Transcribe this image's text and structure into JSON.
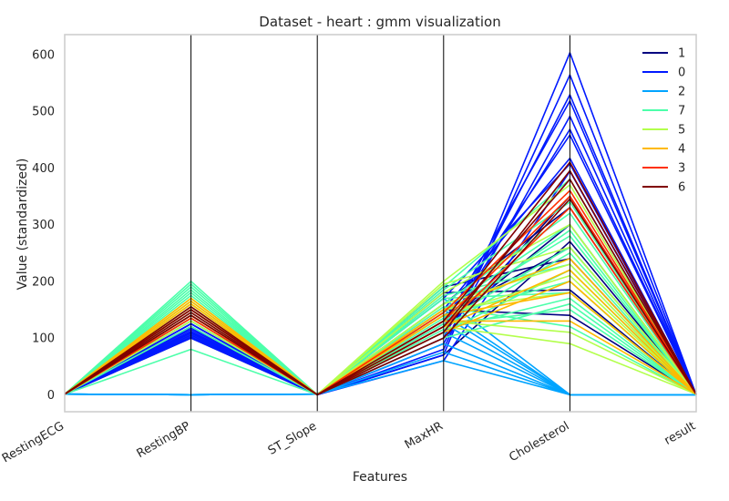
{
  "chart_data": {
    "type": "line",
    "title": "Dataset - heart : gmm visualization",
    "xlabel": "Features",
    "ylabel": "Value (standardized)",
    "categories": [
      "RestingECG",
      "RestingBP",
      "ST_Slope",
      "MaxHR",
      "Cholesterol",
      "result"
    ],
    "ylim": [
      -30,
      635
    ],
    "yticks": [
      0,
      100,
      200,
      300,
      400,
      500,
      600
    ],
    "grid": false,
    "legend_position": "top-right",
    "series": [
      {
        "name": "1",
        "color": "#000080",
        "lines": [
          [
            1,
            100,
            0,
            70,
            270,
            1
          ],
          [
            1,
            125,
            0,
            190,
            240,
            1
          ],
          [
            1,
            110,
            0,
            120,
            300,
            1
          ],
          [
            1,
            140,
            0,
            160,
            330,
            1
          ],
          [
            1,
            120,
            0,
            150,
            140,
            1
          ],
          [
            1,
            130,
            0,
            110,
            350,
            1
          ],
          [
            1,
            105,
            0,
            180,
            185,
            1
          ],
          [
            1,
            135,
            0,
            140,
            260,
            1
          ]
        ]
      },
      {
        "name": "0",
        "color": "#0019ff",
        "lines": [
          [
            1,
            100,
            0,
            70,
            603,
            0
          ],
          [
            1,
            110,
            0,
            80,
            564,
            0
          ],
          [
            1,
            105,
            0,
            100,
            529,
            0
          ],
          [
            1,
            115,
            0,
            120,
            518,
            0
          ],
          [
            1,
            120,
            0,
            90,
            491,
            0
          ],
          [
            1,
            108,
            0,
            110,
            468,
            0
          ],
          [
            1,
            112,
            0,
            130,
            458,
            0
          ],
          [
            1,
            118,
            0,
            150,
            417,
            0
          ],
          [
            1,
            102,
            0,
            170,
            407,
            0
          ],
          [
            1,
            125,
            0,
            60,
            394,
            0
          ]
        ]
      },
      {
        "name": "2",
        "color": "#00a4ff",
        "lines": [
          [
            1,
            0,
            1,
            60,
            0,
            0
          ],
          [
            1,
            0,
            1,
            75,
            0,
            0
          ],
          [
            1,
            0,
            1,
            90,
            0,
            0
          ],
          [
            1,
            0,
            1,
            110,
            0,
            0
          ],
          [
            1,
            0,
            1,
            125,
            0,
            0
          ],
          [
            1,
            0,
            1,
            140,
            0,
            0
          ],
          [
            1,
            0,
            1,
            150,
            0,
            0
          ],
          [
            1,
            0,
            1,
            170,
            0,
            0
          ]
        ]
      },
      {
        "name": "7",
        "color": "#4cffaa",
        "lines": [
          [
            1,
            200,
            0,
            190,
            380,
            0
          ],
          [
            1,
            80,
            0,
            100,
            160,
            0
          ],
          [
            1,
            190,
            0,
            150,
            300,
            0
          ],
          [
            1,
            170,
            0,
            120,
            250,
            0
          ],
          [
            1,
            150,
            0,
            140,
            200,
            0
          ],
          [
            1,
            180,
            0,
            170,
            180,
            0
          ],
          [
            1,
            160,
            0,
            110,
            220,
            0
          ],
          [
            1,
            140,
            0,
            130,
            260,
            0
          ],
          [
            1,
            195,
            0,
            185,
            340,
            0
          ],
          [
            1,
            120,
            0,
            125,
            150,
            0
          ],
          [
            1,
            185,
            0,
            160,
            320,
            0
          ],
          [
            1,
            165,
            0,
            175,
            230,
            0
          ],
          [
            1,
            175,
            0,
            145,
            280,
            0
          ],
          [
            1,
            130,
            0,
            115,
            170,
            0
          ],
          [
            1,
            155,
            0,
            155,
            120,
            0
          ],
          [
            1,
            145,
            0,
            135,
            290,
            0
          ]
        ]
      },
      {
        "name": "5",
        "color": "#b3ff4c",
        "lines": [
          [
            1,
            160,
            0,
            200,
            370,
            1
          ],
          [
            1,
            140,
            0,
            160,
            230,
            1
          ],
          [
            1,
            170,
            0,
            140,
            210,
            1
          ],
          [
            1,
            130,
            0,
            120,
            90,
            1
          ],
          [
            1,
            150,
            0,
            180,
            300,
            1
          ],
          [
            1,
            165,
            0,
            195,
            260,
            1
          ],
          [
            1,
            135,
            0,
            150,
            180,
            1
          ],
          [
            1,
            155,
            0,
            130,
            110,
            1
          ]
        ]
      },
      {
        "name": "4",
        "color": "#ffb900",
        "lines": [
          [
            1,
            150,
            0,
            130,
            130,
            1
          ],
          [
            1,
            160,
            0,
            110,
            200,
            1
          ],
          [
            1,
            170,
            0,
            150,
            240,
            1
          ],
          [
            1,
            140,
            0,
            120,
            220,
            1
          ],
          [
            1,
            165,
            0,
            140,
            180,
            1
          ]
        ]
      },
      {
        "name": "3",
        "color": "#ff3000",
        "lines": [
          [
            1,
            140,
            0,
            130,
            350,
            1
          ],
          [
            1,
            150,
            0,
            120,
            330,
            1
          ],
          [
            1,
            135,
            0,
            145,
            360,
            1
          ]
        ]
      },
      {
        "name": "6",
        "color": "#800000",
        "lines": [
          [
            1,
            150,
            0,
            130,
            410,
            1
          ],
          [
            1,
            140,
            0,
            110,
            395,
            1
          ],
          [
            1,
            145,
            0,
            120,
            380,
            1
          ],
          [
            1,
            155,
            0,
            100,
            345,
            1
          ]
        ]
      }
    ]
  }
}
